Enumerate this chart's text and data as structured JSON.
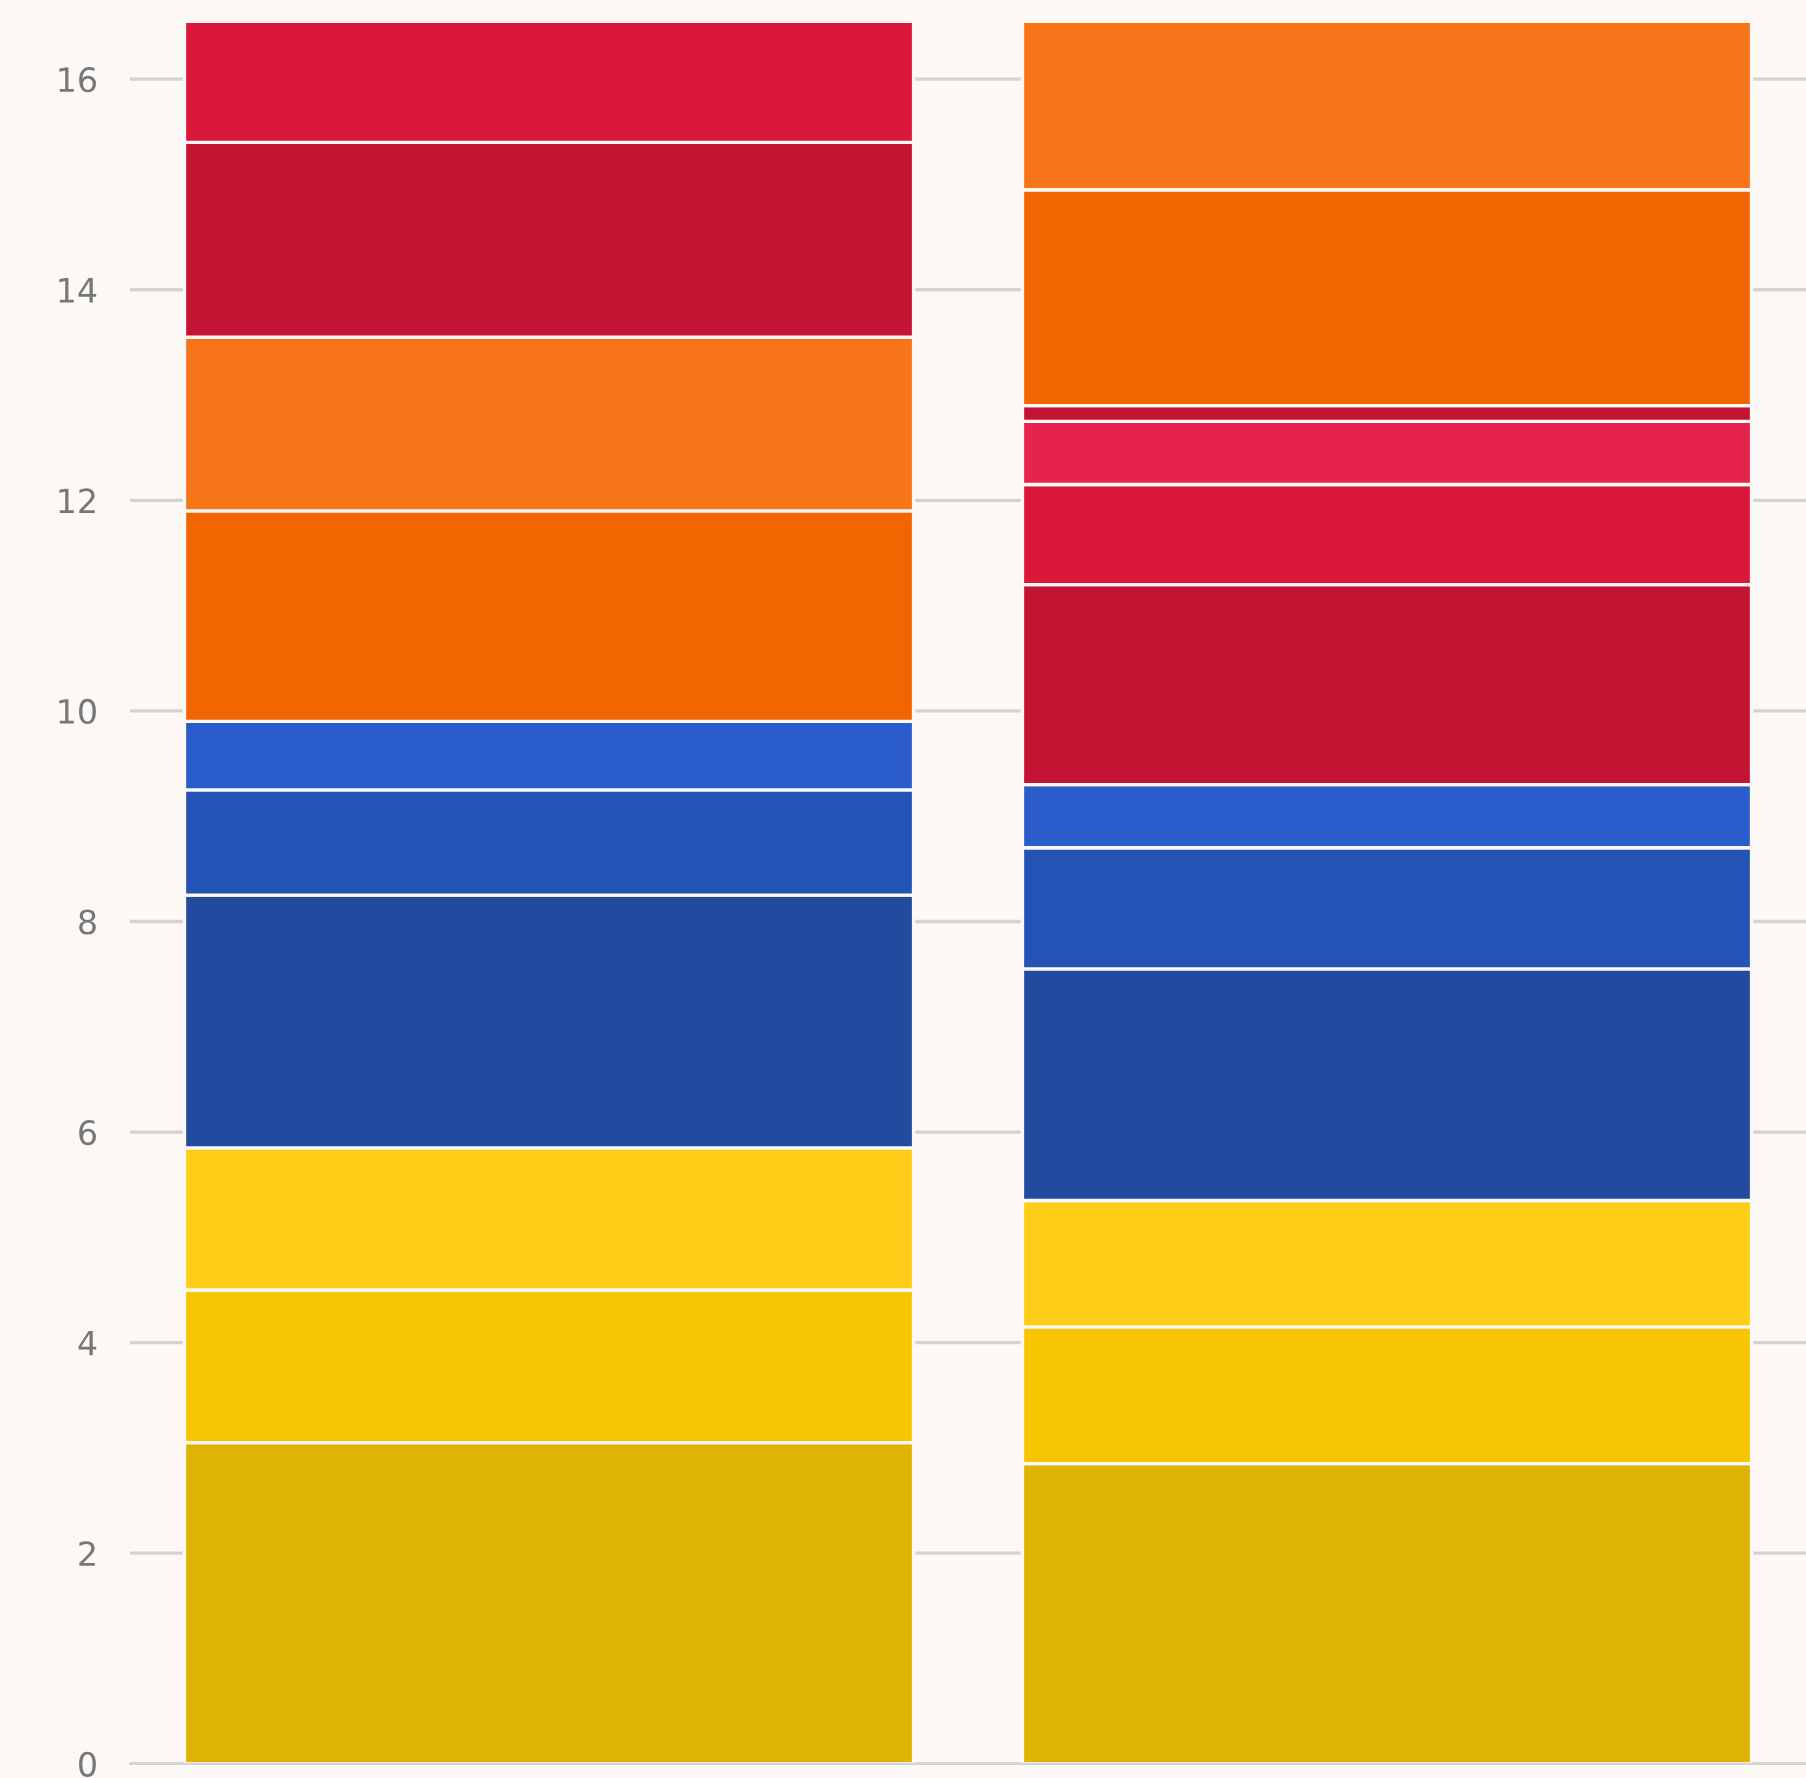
{
  "chart_data": {
    "type": "bar",
    "stacked": true,
    "categories": [
      null,
      null
    ],
    "series": [
      {
        "color": "#dfb304",
        "values": [
          3.05,
          2.85
        ]
      },
      {
        "color": "#f8c503",
        "values": [
          1.45,
          1.3
        ]
      },
      {
        "color": "#fdcd17",
        "values": [
          1.35,
          1.2
        ]
      },
      {
        "color": "#224ba0",
        "values": [
          2.4,
          2.2
        ]
      },
      {
        "color": "#2453b6",
        "values": [
          1.0,
          1.15
        ]
      },
      {
        "color": "#2b5ccb",
        "values": [
          0.65,
          0.6
        ]
      },
      {
        "color": "#f26602",
        "values": [
          2.0,
          null
        ]
      },
      {
        "color": "#f77418",
        "values": [
          1.65,
          null
        ]
      },
      {
        "color": "#c41433",
        "values": [
          1.85,
          1.9
        ]
      },
      {
        "color": "#da1738",
        "values": [
          1.15,
          0.95
        ]
      },
      {
        "color": "#e6234a",
        "values": [
          null,
          0.6
        ]
      },
      {
        "color": "#c41433",
        "values": [
          null,
          0.15
        ]
      },
      {
        "color": "#f26602",
        "values": [
          null,
          2.05
        ]
      },
      {
        "color": "#f77418",
        "values": [
          null,
          1.6
        ]
      }
    ],
    "ylim": [
      0,
      16.6
    ],
    "yticks": [
      0,
      2,
      4,
      6,
      8,
      10,
      12,
      14,
      16
    ],
    "grid": "y"
  }
}
